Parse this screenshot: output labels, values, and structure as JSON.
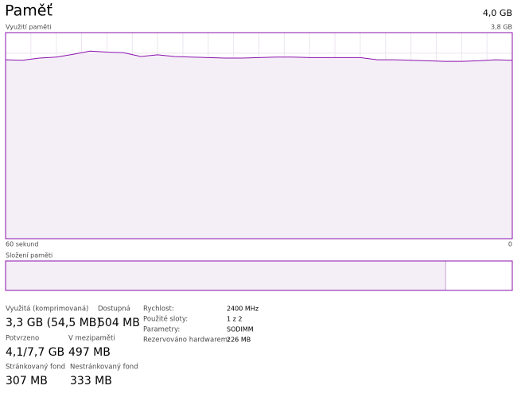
{
  "header": {
    "title": "Paměť",
    "total": "4,0 GB"
  },
  "usage_chart": {
    "type": "line",
    "label": "Využití paměti",
    "ymax_label": "3,8 GB",
    "x_start_label": "60 sekund",
    "x_end_label": "0",
    "ylim": [
      0,
      3.8
    ],
    "xlim": [
      60,
      0
    ],
    "color": "#8b12ae",
    "x": [
      60,
      58,
      56,
      54,
      52,
      50,
      48,
      46,
      44,
      42,
      40,
      38,
      36,
      34,
      32,
      30,
      28,
      26,
      24,
      22,
      20,
      18,
      16,
      14,
      12,
      10,
      8,
      6,
      4,
      2,
      0
    ],
    "values": [
      3.3,
      3.29,
      3.33,
      3.35,
      3.4,
      3.46,
      3.44,
      3.43,
      3.36,
      3.39,
      3.36,
      3.35,
      3.34,
      3.33,
      3.33,
      3.34,
      3.35,
      3.35,
      3.34,
      3.34,
      3.34,
      3.34,
      3.3,
      3.3,
      3.29,
      3.28,
      3.27,
      3.27,
      3.28,
      3.3,
      3.29
    ]
  },
  "composition": {
    "label": "Složení paměti",
    "in_use": 3.3,
    "max": 3.8
  },
  "stats": [
    {
      "label": "Využitá (komprimovaná)",
      "value": "3,3 GB (54,5 MB)"
    },
    {
      "label": "Dostupná",
      "value": "504 MB"
    },
    {
      "label": "Potvrzeno",
      "value": "4,1/7,7 GB"
    },
    {
      "label": "V mezipaměti",
      "value": "497 MB"
    },
    {
      "label": "Stránkovaný fond",
      "value": "307 MB"
    },
    {
      "label": "Nestránkovaný fond",
      "value": "333 MB"
    }
  ],
  "details": [
    {
      "label": "Rychlost:",
      "value": "2400 MHz"
    },
    {
      "label": "Použité sloty:",
      "value": "1 z 2"
    },
    {
      "label": "Parametry:",
      "value": "SODIMM"
    },
    {
      "label": "Rezervováno hardwarem:",
      "value": "226 MB"
    }
  ]
}
